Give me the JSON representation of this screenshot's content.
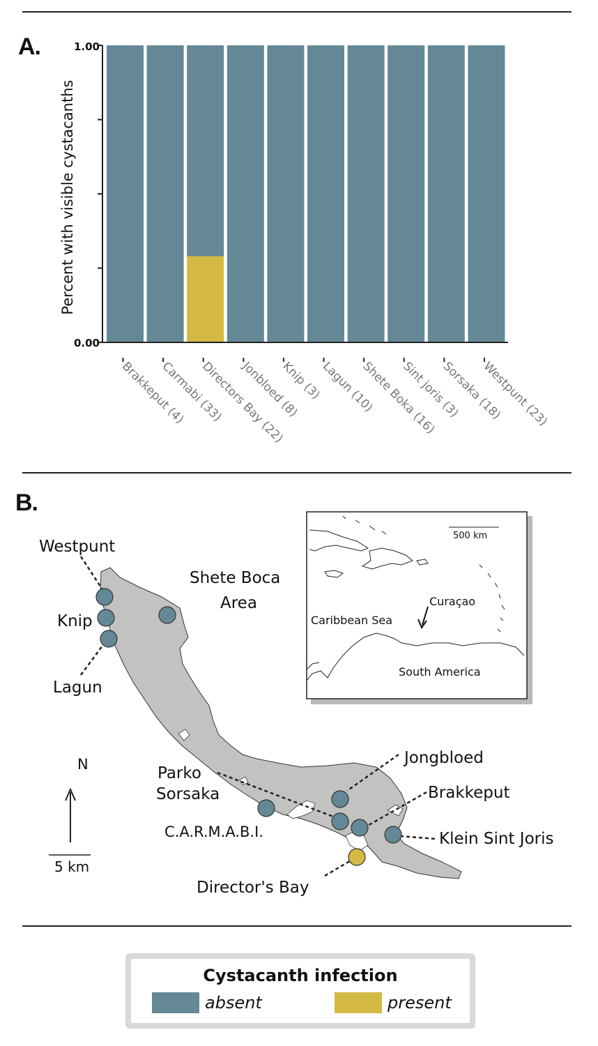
{
  "panels": {
    "a_label": "A.",
    "b_label": "B."
  },
  "colors": {
    "absent": "#648896",
    "present": "#d4b944",
    "land": "#c2c3c0"
  },
  "chart_data": {
    "type": "bar",
    "stacked": true,
    "ylabel": "Percent with visible cystacanths",
    "ylim": [
      0,
      1
    ],
    "ytick_labels": [
      "0.00",
      "1.00"
    ],
    "categories": [
      "Brakkeput (4)",
      "Carmabi (33)",
      "Directors Bay (22)",
      "Jonbloed (8)",
      "Knip (3)",
      "Lagun (10)",
      "Shete Boka (16)",
      "Sint joris (3)",
      "Sorsaka (18)",
      "Westpunt (23)"
    ],
    "series": [
      {
        "name": "present",
        "values": [
          0,
          0,
          0.29,
          0,
          0,
          0,
          0,
          0,
          0,
          0
        ]
      },
      {
        "name": "absent",
        "values": [
          1,
          1,
          0.71,
          1,
          1,
          1,
          1,
          1,
          1,
          1
        ]
      }
    ]
  },
  "map": {
    "site_labels": {
      "westpunt": "Westpunt",
      "knip": "Knip",
      "lagun": "Lagun",
      "shete_boca": [
        "Shete Boca",
        "Area"
      ],
      "parko_sorsaka": [
        "Parko",
        "Sorsaka"
      ],
      "carmabi": "C.A.R.M.A.B.I.",
      "jongbloed": "Jongbloed",
      "brakkeput": "Brakkeput",
      "klein_sint_joris": "Klein Sint Joris",
      "directors_bay": "Director's Bay"
    },
    "north_label": "N",
    "scale_label": "5 km",
    "inset": {
      "scale_label": "500 km",
      "curacao": "Curaçao",
      "caribbean_sea": "Caribbean Sea",
      "south_america": "South America"
    }
  },
  "legend": {
    "title": "Cystacanth infection",
    "absent": "absent",
    "present": "present"
  }
}
